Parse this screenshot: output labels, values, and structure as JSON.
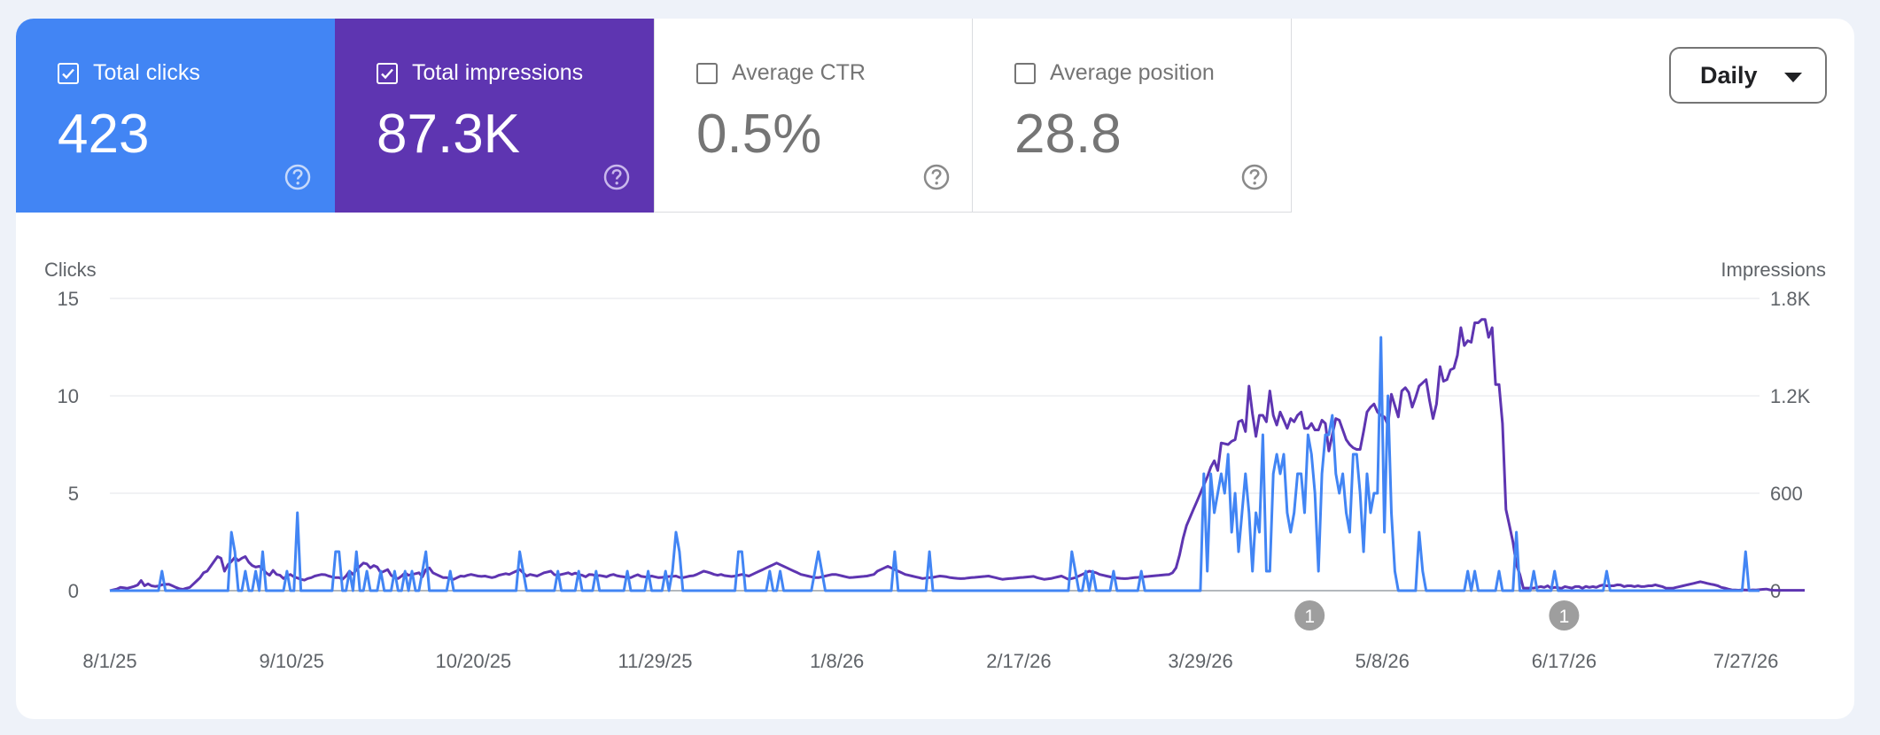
{
  "metrics": [
    {
      "label": "Total clicks",
      "value": "423",
      "checked": true,
      "color": "#4285f4"
    },
    {
      "label": "Total impressions",
      "value": "87.3K",
      "checked": true,
      "color": "#5e35b1"
    },
    {
      "label": "Average CTR",
      "value": "0.5%",
      "checked": false
    },
    {
      "label": "Average position",
      "value": "28.8",
      "checked": false
    }
  ],
  "icons": {
    "help": "help-circle-icon",
    "checkbox": "checkbox-icon",
    "dropdown": "caret-down-icon",
    "annotation": "annotation-marker-icon"
  },
  "granularity": {
    "label": "Daily"
  },
  "chart_data": {
    "type": "line",
    "xlabel": "",
    "y_left_label": "Clicks",
    "y_right_label": "Impressions",
    "y_left_ticks": [
      "0",
      "5",
      "10",
      "15"
    ],
    "y_right_ticks": [
      "0",
      "600",
      "1.2K",
      "1.8K"
    ],
    "ylim_left": [
      0,
      15
    ],
    "ylim_right": [
      0,
      1800
    ],
    "x_ticks": [
      "8/1/25",
      "9/10/25",
      "10/20/25",
      "11/29/25",
      "1/8/26",
      "2/17/26",
      "3/29/26",
      "5/8/26",
      "6/17/26",
      "7/27/26"
    ],
    "x_start": "8/1/25",
    "x_end": "7/30/26",
    "annotations": [
      {
        "date": "4/22/26",
        "label": "1"
      },
      {
        "date": "6/17/26",
        "label": "1"
      }
    ],
    "grid": true,
    "series": [
      {
        "name": "Clicks",
        "axis": "left",
        "color": "#4285f4",
        "values": [
          0,
          0,
          0,
          0,
          0,
          0,
          0,
          0,
          0,
          0,
          0,
          0,
          0,
          0,
          0,
          1,
          0,
          0,
          0,
          0,
          0,
          0,
          0,
          0,
          0,
          0,
          0,
          0,
          0,
          0,
          0,
          0,
          0,
          0,
          0,
          3,
          2,
          0,
          0,
          1,
          0,
          0,
          1,
          0,
          2,
          0,
          0,
          0,
          0,
          0,
          0,
          1,
          0,
          0,
          4,
          0,
          0,
          0,
          0,
          0,
          0,
          0,
          0,
          0,
          0,
          2,
          2,
          0,
          0,
          1,
          0,
          2,
          0,
          0,
          1,
          0,
          0,
          0,
          1,
          0,
          0,
          0,
          1,
          0,
          0,
          1,
          0,
          1,
          0,
          0,
          1,
          2,
          0,
          0,
          0,
          0,
          0,
          0,
          1,
          0,
          0,
          0,
          0,
          0,
          0,
          0,
          0,
          0,
          0,
          0,
          0,
          0,
          0,
          0,
          0,
          0,
          0,
          0,
          2,
          1,
          0,
          0,
          0,
          0,
          0,
          0,
          0,
          0,
          0,
          1,
          0,
          0,
          0,
          0,
          0,
          1,
          0,
          0,
          0,
          0,
          1,
          0,
          0,
          0,
          0,
          0,
          0,
          0,
          0,
          1,
          0,
          0,
          0,
          0,
          0,
          1,
          0,
          0,
          0,
          0,
          1,
          0,
          1,
          3,
          2,
          0,
          0,
          0,
          0,
          0,
          0,
          0,
          0,
          0,
          0,
          0,
          0,
          0,
          0,
          0,
          0,
          2,
          2,
          0,
          0,
          0,
          0,
          0,
          0,
          0,
          1,
          0,
          0,
          1,
          0,
          0,
          0,
          0,
          0,
          0,
          0,
          0,
          0,
          1,
          2,
          1,
          0,
          0,
          0,
          0,
          0,
          0,
          0,
          0,
          0,
          0,
          0,
          0,
          0,
          0,
          0,
          0,
          0,
          0,
          0,
          0,
          2,
          0,
          0,
          0,
          0,
          0,
          0,
          0,
          0,
          0,
          2,
          0,
          0,
          0,
          0,
          0,
          0,
          0,
          0,
          0,
          0,
          0,
          0,
          0,
          0,
          0,
          0,
          0,
          0,
          0,
          0,
          0,
          0,
          0,
          0,
          0,
          0,
          0,
          0,
          0,
          0,
          0,
          0,
          0,
          0,
          0,
          0,
          0,
          0,
          0,
          0,
          2,
          1,
          0,
          0,
          1,
          0,
          1,
          0,
          0,
          0,
          0,
          0,
          1,
          0,
          0,
          0,
          0,
          0,
          0,
          0,
          1,
          0,
          0,
          0,
          0,
          0,
          0,
          0,
          0,
          0,
          0,
          0,
          0,
          0,
          0,
          0,
          0,
          0,
          6,
          1,
          6,
          4,
          5,
          6,
          5,
          7,
          3,
          5,
          2,
          4,
          6,
          4,
          1,
          4,
          3,
          8,
          1,
          1,
          6,
          7,
          6,
          7,
          4,
          3,
          4,
          6,
          6,
          4,
          8,
          7,
          5,
          1,
          6,
          8,
          8,
          9,
          6,
          5,
          6,
          4,
          3,
          7,
          7,
          5,
          2,
          6,
          4,
          5,
          5,
          13,
          3,
          10,
          4,
          1,
          0,
          0,
          0,
          0,
          0,
          0,
          3,
          1,
          0,
          0,
          0,
          0,
          0,
          0,
          0,
          0,
          0,
          0,
          0,
          0,
          1,
          0,
          1,
          0,
          0,
          0,
          0,
          0,
          0,
          1,
          0,
          0,
          0,
          0,
          3,
          0,
          0,
          0,
          0,
          1,
          0,
          0,
          0,
          0,
          0,
          1,
          0,
          0,
          0,
          0,
          0,
          0,
          0,
          0,
          0,
          0,
          0,
          0,
          0,
          0,
          1,
          0,
          0,
          0,
          0,
          0,
          0,
          0,
          0,
          0,
          0,
          0,
          0,
          0,
          0,
          0,
          0,
          0,
          0,
          0,
          0,
          0,
          0,
          0,
          0,
          0,
          0,
          0,
          0,
          0,
          0,
          0,
          0,
          0,
          0,
          0,
          0,
          0,
          0,
          0,
          2,
          0,
          0,
          0,
          0
        ]
      },
      {
        "name": "Impressions",
        "axis": "right",
        "color": "#5e35b1",
        "values": [
          0,
          5,
          10,
          20,
          18,
          15,
          20,
          26,
          35,
          62,
          30,
          42,
          30,
          26,
          29,
          36,
          39,
          40,
          30,
          20,
          12,
          8,
          15,
          20,
          40,
          60,
          80,
          110,
          120,
          150,
          180,
          210,
          200,
          120,
          160,
          180,
          205,
          185,
          200,
          210,
          175,
          155,
          145,
          150,
          135,
          110,
          95,
          125,
          100,
          95,
          75,
          90,
          100,
          85,
          78,
          70,
          65,
          75,
          80,
          90,
          95,
          100,
          98,
          90,
          84,
          80,
          80,
          70,
          90,
          120,
          100,
          130,
          150,
          170,
          165,
          140,
          155,
          145,
          110,
          120,
          130,
          95,
          80,
          75,
          90,
          110,
          95,
          100,
          105,
          110,
          85,
          130,
          140,
          110,
          100,
          90,
          80,
          80,
          75,
          70,
          80,
          90,
          88,
          95,
          100,
          95,
          90,
          88,
          90,
          85,
          80,
          85,
          95,
          100,
          105,
          100,
          110,
          120,
          130,
          110,
          90,
          100,
          95,
          90,
          100,
          110,
          115,
          120,
          98,
          95,
          100,
          105,
          110,
          100,
          108,
          100,
          95,
          85,
          100,
          98,
          90,
          94,
          90,
          85,
          95,
          100,
          92,
          88,
          85,
          80,
          80,
          90,
          98,
          88,
          85,
          84,
          90,
          85,
          80,
          82,
          84,
          87,
          88,
          90,
          82,
          80,
          85,
          90,
          92,
          100,
          110,
          120,
          115,
          108,
          100,
          95,
          100,
          93,
          90,
          87,
          90,
          95,
          100,
          95,
          90,
          100,
          110,
          120,
          130,
          140,
          150,
          160,
          170,
          160,
          150,
          140,
          130,
          120,
          110,
          100,
          95,
          90,
          85,
          80,
          80,
          85,
          90,
          95,
          100,
          100,
          95,
          90,
          85,
          80,
          82,
          84,
          86,
          88,
          90,
          95,
          100,
          120,
          130,
          140,
          150,
          140,
          130,
          120,
          110,
          100,
          95,
          90,
          85,
          80,
          75,
          78,
          80,
          82,
          86,
          90,
          88,
          85,
          80,
          78,
          76,
          74,
          75,
          78,
          80,
          82,
          84,
          86,
          88,
          90,
          85,
          80,
          75,
          70,
          72,
          74,
          76,
          78,
          80,
          82,
          84,
          86,
          88,
          80,
          75,
          70,
          72,
          75,
          80,
          85,
          90,
          80,
          70,
          75,
          80,
          90,
          100,
          110,
          120,
          115,
          110,
          100,
          95,
          90,
          85,
          80,
          78,
          76,
          74,
          75,
          78,
          80,
          82,
          84,
          86,
          88,
          90,
          92,
          94,
          96,
          98,
          100,
          110,
          140,
          220,
          320,
          400,
          450,
          500,
          550,
          600,
          650,
          700,
          760,
          800,
          740,
          910,
          905,
          900,
          920,
          930,
          1040,
          1050,
          980,
          1260,
          1090,
          950,
          1080,
          1080,
          1040,
          1230,
          1080,
          1020,
          1100,
          1050,
          1000,
          1060,
          1040,
          1080,
          1100,
          1000,
          1000,
          1030,
          990,
          990,
          1050,
          1030,
          860,
          960,
          1060,
          1050,
          990,
          930,
          900,
          880,
          870,
          870,
          980,
          1100,
          1130,
          1150,
          1100,
          1080,
          1070,
          1020,
          1210,
          1140,
          1070,
          1230,
          1250,
          1220,
          1130,
          1190,
          1260,
          1280,
          1300,
          1170,
          1060,
          1150,
          1380,
          1290,
          1300,
          1360,
          1370,
          1450,
          1620,
          1510,
          1540,
          1530,
          1650,
          1650,
          1670,
          1670,
          1560,
          1620,
          1270,
          1270,
          1030,
          500,
          400,
          300,
          160,
          100,
          16,
          16,
          16,
          16,
          20,
          25,
          20,
          30,
          15,
          20,
          18,
          15,
          25,
          20,
          16,
          25,
          25,
          15,
          26,
          20,
          25,
          20,
          30,
          35,
          30,
          30,
          30,
          36,
          35,
          25,
          30,
          30,
          25,
          30,
          25,
          26,
          30,
          30,
          36,
          30,
          25,
          16,
          15,
          15,
          20,
          25,
          30,
          35,
          40,
          45,
          50,
          55,
          50,
          45,
          40,
          36,
          30,
          20,
          16,
          10,
          5,
          4,
          3,
          5,
          4,
          3,
          5,
          4,
          6,
          8,
          10,
          5,
          3,
          2,
          2,
          2,
          2,
          2,
          2,
          2,
          2,
          2
        ]
      }
    ]
  }
}
